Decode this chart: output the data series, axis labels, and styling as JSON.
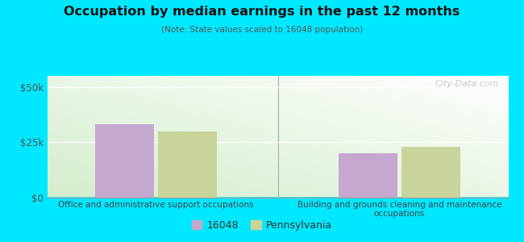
{
  "title": "Occupation by median earnings in the past 12 months",
  "subtitle": "(Note: State values scaled to 16048 population)",
  "categories": [
    "Office and administrative support occupations",
    "Building and grounds cleaning and maintenance\noccupations"
  ],
  "series": {
    "16048": [
      33000,
      20000
    ],
    "Pennsylvania": [
      30000,
      23000
    ]
  },
  "bar_colors": {
    "16048": "#c4a8d0",
    "Pennsylvania": "#c8d49a"
  },
  "legend_labels": [
    "16048",
    "Pennsylvania"
  ],
  "ylim": [
    0,
    55000
  ],
  "yticks": [
    0,
    25000,
    50000
  ],
  "ytick_labels": [
    "$0",
    "$25k",
    "$50k"
  ],
  "background_color": "#00e8ff",
  "watermark": "City-Data.com",
  "bar_width": 0.28,
  "x_positions": [
    0.42,
    1.58
  ]
}
